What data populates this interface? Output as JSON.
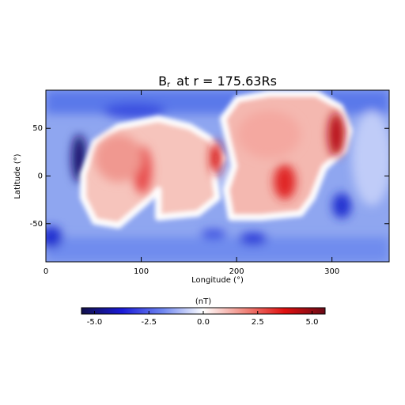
{
  "chart_data": {
    "type": "heatmap",
    "title": {
      "symbol": "B",
      "subscript": "r",
      "text": "at r = 175.63Rs"
    },
    "x_label": "Longitude (°)",
    "y_label": "Latitude (°)",
    "xlim": [
      0,
      360
    ],
    "xticks": [
      0,
      100,
      200,
      300
    ],
    "ylim": [
      -90,
      90
    ],
    "yticks": [
      -50,
      0,
      50
    ],
    "colorbar": {
      "label": "(nT)",
      "lim": [
        -5.6,
        5.6
      ],
      "ticks": [
        {
          "value": -5,
          "label": "-5.0"
        },
        -2.5,
        {
          "value": 0,
          "label": "0.0"
        },
        2.5,
        {
          "value": 5,
          "label": "5.0"
        }
      ],
      "colors": [
        "#12104a",
        "#1a1ad8",
        "#6f86f0",
        "#ffffff",
        "#f08a80",
        "#e01010",
        "#6a0a16"
      ]
    }
  }
}
